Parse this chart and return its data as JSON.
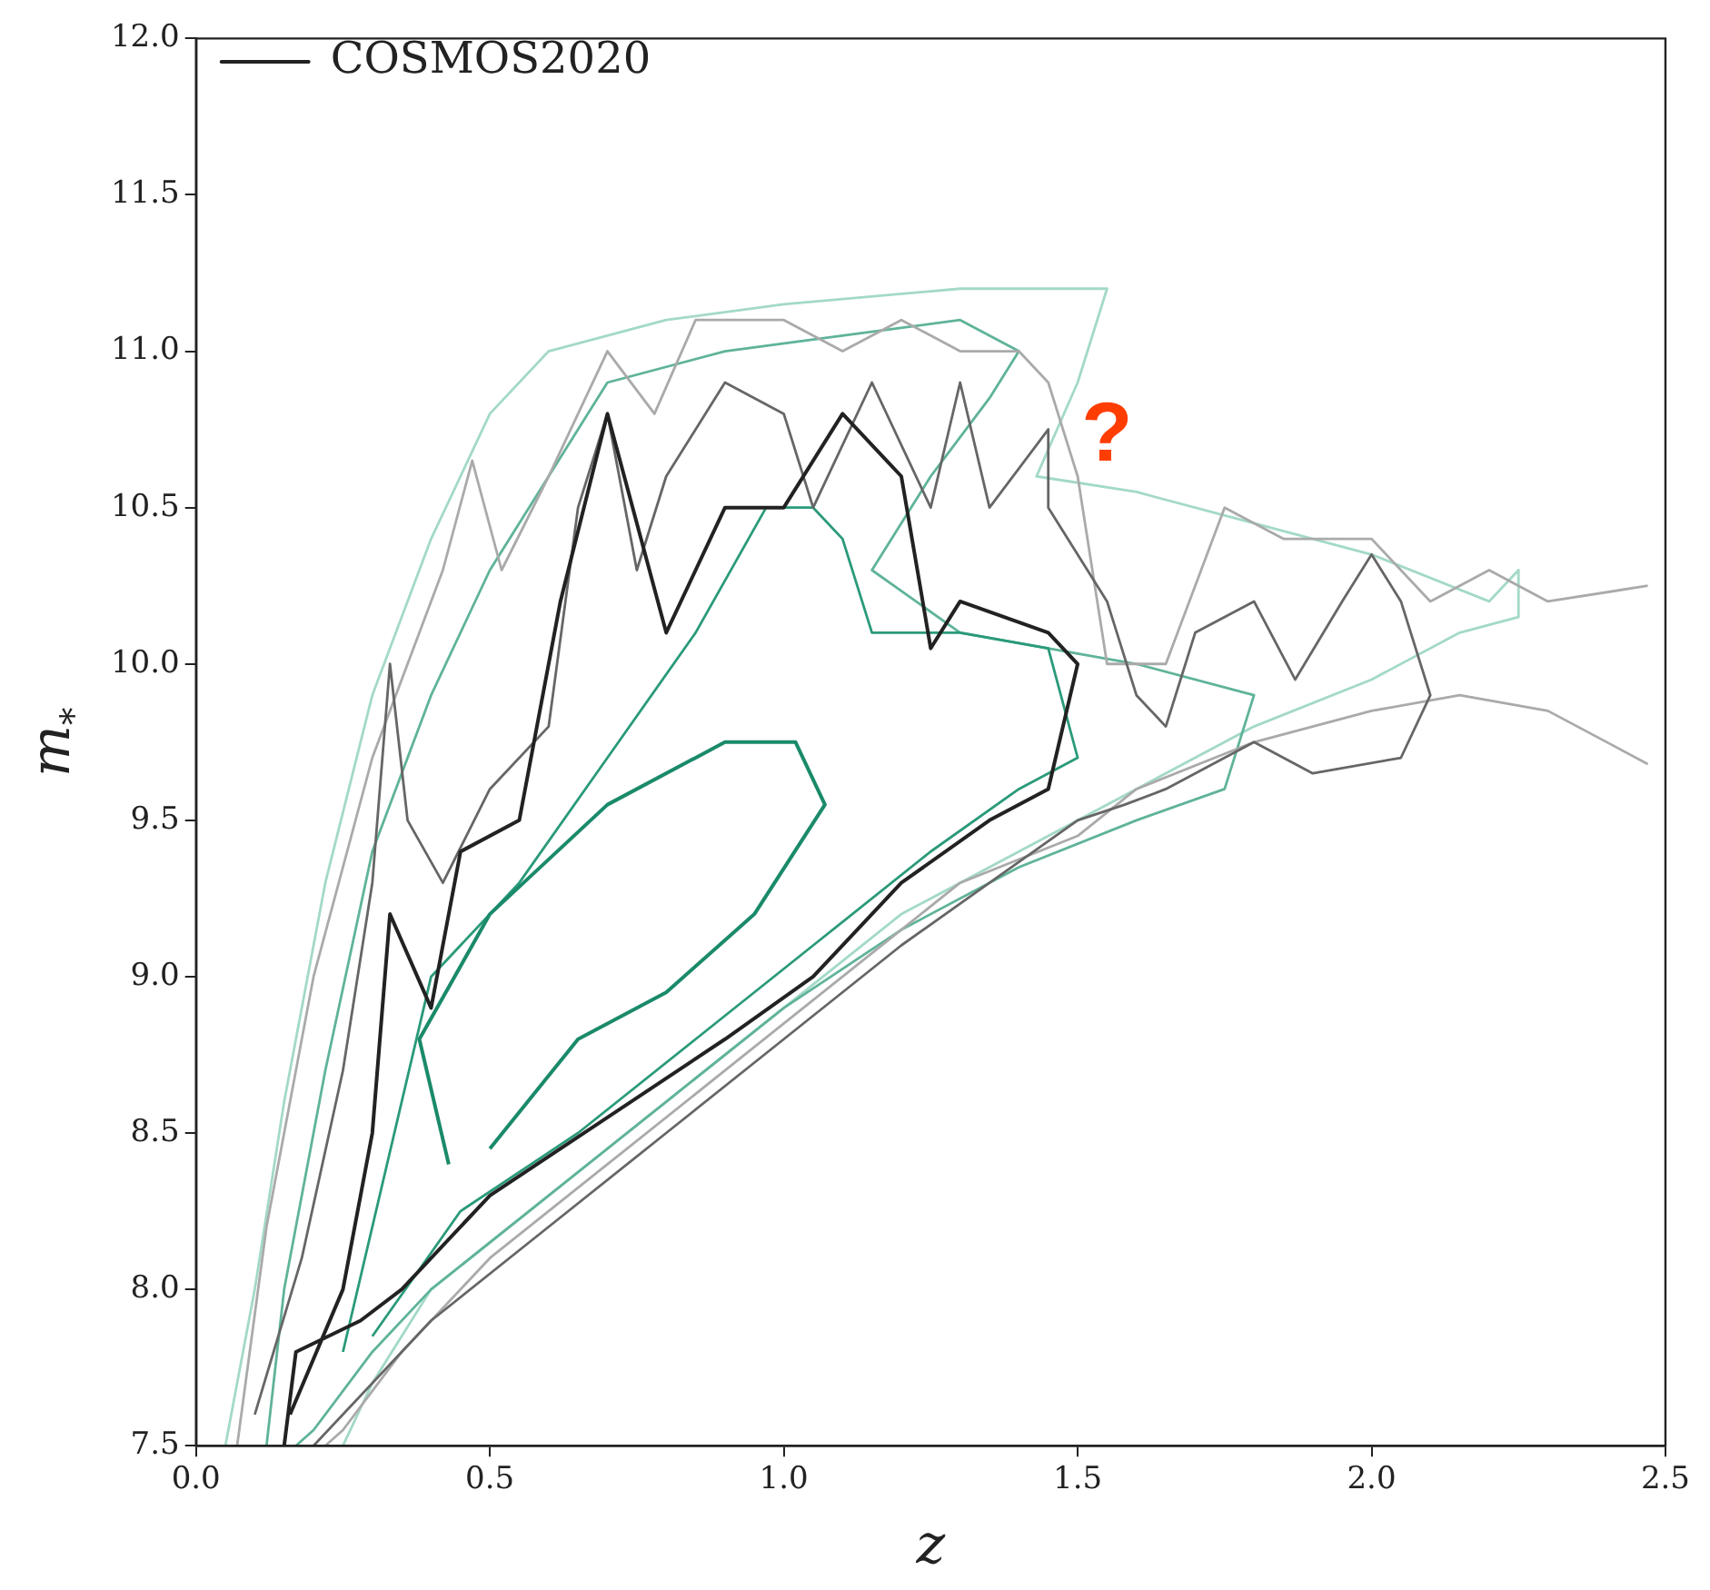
{
  "chart_data": {
    "type": "line",
    "xlabel": "z",
    "ylabel": "m$_{*}$",
    "xlim": [
      0,
      2.5
    ],
    "ylim": [
      7.5,
      12
    ],
    "xticks": [
      {
        "value": 0,
        "label": "0.0"
      },
      {
        "value": 0.5,
        "label": "0.5"
      },
      {
        "value": 1,
        "label": "1.0"
      },
      {
        "value": 1.5,
        "label": "1.5"
      },
      {
        "value": 2,
        "label": "2.0"
      },
      {
        "value": 2.5,
        "label": "2.5"
      }
    ],
    "yticks": [
      7.5,
      {
        "value": 8,
        "label": "8.0"
      },
      8.5,
      {
        "value": 9,
        "label": "9.0"
      },
      9.5,
      {
        "value": 10,
        "label": "10.0"
      },
      10.5,
      {
        "value": 11,
        "label": "11.0"
      },
      11.5,
      {
        "value": 12,
        "label": "12.0"
      }
    ],
    "grid": false,
    "legend": "top left",
    "marker": "none",
    "line_style": "solid",
    "annotations": [
      "?"
    ],
    "series": [
      {
        "name": "COSMOS2020",
        "color": "#222222",
        "x": [
          0.15,
          0.17,
          0.28,
          0.35,
          0.5,
          0.7,
          0.9,
          1.05,
          1.2,
          1.35,
          1.45,
          1.5,
          1.45,
          1.3,
          1.25,
          1.2,
          1.1,
          1.0,
          0.9,
          0.8,
          0.7,
          0.62,
          0.55,
          0.45,
          0.4,
          0.33,
          0.3,
          0.25,
          0.16
        ],
        "values": [
          7.5,
          7.8,
          7.9,
          8.0,
          8.3,
          8.55,
          8.8,
          9.0,
          9.3,
          9.5,
          9.6,
          10.0,
          10.1,
          10.2,
          10.05,
          10.6,
          10.8,
          10.5,
          10.5,
          10.1,
          10.8,
          10.2,
          9.5,
          9.4,
          8.9,
          9.2,
          8.5,
          8.0,
          7.6
        ]
      },
      {
        "color": "#666666",
        "x": [
          0.1,
          0.18,
          0.25,
          0.3,
          0.33,
          0.36,
          0.42,
          0.5,
          0.6,
          0.65,
          0.7,
          0.75,
          0.8,
          0.9,
          1.0,
          1.05,
          1.15,
          1.25,
          1.3,
          1.35,
          1.45,
          1.45,
          1.55,
          1.6,
          1.65,
          1.7,
          1.8,
          1.87,
          1.95,
          2.0,
          2.05,
          2.1,
          2.05,
          1.9,
          1.8,
          1.75,
          1.65,
          1.58,
          1.5,
          1.35,
          1.2,
          1.0,
          0.8,
          0.6,
          0.4,
          0.25,
          0.2
        ],
        "values": [
          7.6,
          8.1,
          8.7,
          9.3,
          10.0,
          9.5,
          9.3,
          9.6,
          9.8,
          10.5,
          10.8,
          10.3,
          10.6,
          10.9,
          10.8,
          10.5,
          10.9,
          10.5,
          10.9,
          10.5,
          10.75,
          10.5,
          10.2,
          9.9,
          9.8,
          10.1,
          10.2,
          9.95,
          10.2,
          10.35,
          10.2,
          9.9,
          9.7,
          9.65,
          9.75,
          9.7,
          9.6,
          9.55,
          9.5,
          9.3,
          9.1,
          8.8,
          8.5,
          8.2,
          7.9,
          7.6,
          7.5
        ]
      },
      {
        "color": "#aaaaaa",
        "x": [
          0.07,
          0.12,
          0.2,
          0.3,
          0.42,
          0.47,
          0.52,
          0.6,
          0.7,
          0.78,
          0.85,
          1.0,
          1.1,
          1.2,
          1.3,
          1.4,
          1.45,
          1.5,
          1.55,
          1.65,
          1.75,
          1.85,
          2.0,
          2.1,
          2.2,
          2.3,
          2.47,
          null,
          2.47,
          2.3,
          2.15,
          2.0,
          1.8,
          1.6,
          1.5,
          1.3,
          1.1,
          0.9,
          0.7,
          0.5,
          0.35,
          0.25,
          0.22
        ],
        "values": [
          7.5,
          8.2,
          9.0,
          9.7,
          10.3,
          10.65,
          10.3,
          10.6,
          11.0,
          10.8,
          11.1,
          11.1,
          11.0,
          11.1,
          11.0,
          11.0,
          10.9,
          10.6,
          10.0,
          10.0,
          10.5,
          10.4,
          10.4,
          10.2,
          10.3,
          10.2,
          10.25,
          null,
          9.68,
          9.85,
          9.9,
          9.85,
          9.75,
          9.6,
          9.45,
          9.3,
          9.0,
          8.7,
          8.4,
          8.1,
          7.8,
          7.55,
          7.5
        ]
      },
      {
        "color": "#1a8a6a",
        "x": [
          0.43,
          0.38,
          0.5,
          0.7,
          0.9,
          1.02,
          1.07,
          0.95,
          0.8,
          0.65,
          0.5
        ],
        "values": [
          8.4,
          8.8,
          9.2,
          9.55,
          9.75,
          9.75,
          9.55,
          9.2,
          8.95,
          8.8,
          8.45
        ]
      },
      {
        "color": "#2a9a7a",
        "x": [
          0.25,
          0.4,
          0.55,
          0.7,
          0.85,
          0.97,
          1.05,
          1.1,
          1.15,
          1.3,
          1.45,
          1.5,
          1.4,
          1.25,
          1.05,
          0.85,
          0.65,
          0.45,
          0.3
        ],
        "values": [
          7.8,
          9.0,
          9.3,
          9.7,
          10.1,
          10.5,
          10.5,
          10.4,
          10.1,
          10.1,
          10.05,
          9.7,
          9.6,
          9.4,
          9.1,
          8.8,
          8.5,
          8.25,
          7.85
        ]
      },
      {
        "color": "#5fb39a",
        "x": [
          0.12,
          0.15,
          0.22,
          0.3,
          0.4,
          0.5,
          0.6,
          0.7,
          0.9,
          1.1,
          1.3,
          1.4,
          1.35,
          1.25,
          1.15,
          1.3,
          1.6,
          1.8,
          1.75,
          1.6,
          1.4,
          1.2,
          1.0,
          0.8,
          0.6,
          0.4,
          0.3,
          0.2,
          0.17
        ],
        "values": [
          7.5,
          8.0,
          8.7,
          9.4,
          9.9,
          10.3,
          10.6,
          10.9,
          11.0,
          11.05,
          11.1,
          11.0,
          10.85,
          10.6,
          10.3,
          10.1,
          10.0,
          9.9,
          9.6,
          9.5,
          9.35,
          9.15,
          8.9,
          8.6,
          8.3,
          8.0,
          7.8,
          7.55,
          7.5
        ]
      },
      {
        "color": "#a3d9c7",
        "x": [
          0.05,
          0.1,
          0.15,
          0.22,
          0.3,
          0.4,
          0.5,
          0.6,
          0.8,
          1.0,
          1.3,
          1.55,
          1.5,
          1.43,
          1.6,
          1.8,
          2.0,
          2.2,
          2.25,
          2.25,
          2.15,
          2.0,
          1.8,
          1.6,
          1.4,
          1.2,
          1.0,
          0.8,
          0.6,
          0.4,
          0.3,
          0.25
        ],
        "values": [
          7.5,
          8.0,
          8.6,
          9.3,
          9.9,
          10.4,
          10.8,
          11.0,
          11.1,
          11.15,
          11.2,
          11.2,
          10.9,
          10.6,
          10.55,
          10.45,
          10.35,
          10.2,
          10.3,
          10.15,
          10.1,
          9.95,
          9.8,
          9.6,
          9.4,
          9.2,
          8.9,
          8.6,
          8.3,
          8.0,
          7.7,
          7.5
        ]
      }
    ]
  }
}
